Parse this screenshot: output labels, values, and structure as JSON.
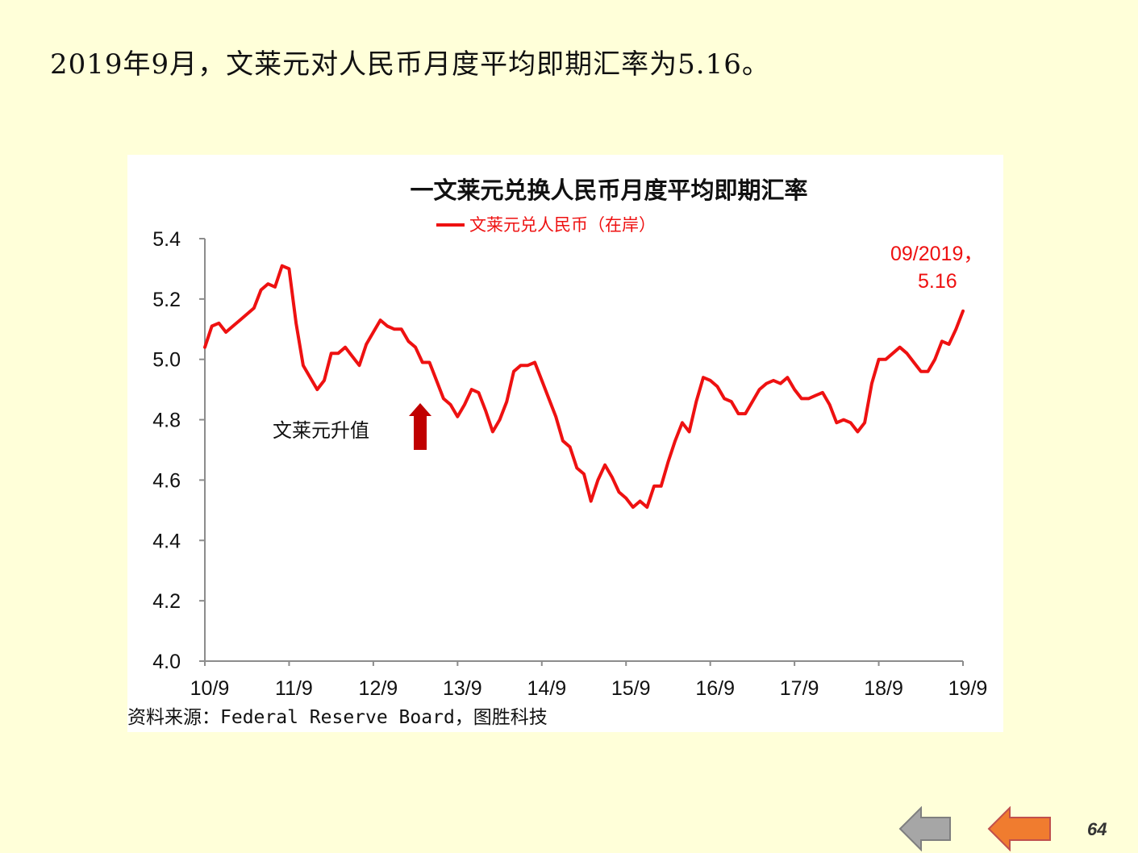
{
  "headline": "2019年9月，文莱元对人民币月度平均即期汇率为5.16。",
  "source": "资料来源：Federal Reserve Board，图胜科技",
  "page_number": "64",
  "nav": {
    "back_icon": "gray-left-arrow-icon",
    "prev_icon": "orange-left-arrow-icon"
  },
  "colors": {
    "background": "#ffffd9",
    "series": "#ee1111",
    "appreciation_arrow": "#c00000",
    "back_arrow": "#a6a6a6",
    "prev_arrow": "#f07c2f"
  },
  "chart_data": {
    "type": "line",
    "title": "一文莱元兑换人民币月度平均即期汇率",
    "xlabel": "",
    "ylabel": "",
    "ylim": [
      4.0,
      5.4
    ],
    "yticks": [
      "5.4",
      "5.2",
      "5.0",
      "4.8",
      "4.6",
      "4.4",
      "4.2",
      "4.0"
    ],
    "xticks": [
      "10/9",
      "11/9",
      "12/9",
      "13/9",
      "14/9",
      "15/9",
      "16/9",
      "17/9",
      "18/9",
      "19/9"
    ],
    "grid": false,
    "legend": "top-center",
    "series": [
      {
        "name": "文莱元兑人民币（在岸）",
        "start": "2010-09",
        "end": "2019-09",
        "values": [
          5.04,
          5.11,
          5.12,
          5.09,
          5.11,
          5.13,
          5.15,
          5.17,
          5.23,
          5.25,
          5.24,
          5.31,
          5.3,
          5.12,
          4.98,
          4.94,
          4.9,
          4.93,
          5.02,
          5.02,
          5.04,
          5.01,
          4.98,
          5.05,
          5.09,
          5.13,
          5.11,
          5.1,
          5.1,
          5.06,
          5.04,
          4.99,
          4.99,
          4.93,
          4.87,
          4.85,
          4.81,
          4.85,
          4.9,
          4.89,
          4.83,
          4.76,
          4.8,
          4.86,
          4.96,
          4.98,
          4.98,
          4.99,
          4.93,
          4.87,
          4.81,
          4.73,
          4.71,
          4.64,
          4.62,
          4.53,
          4.6,
          4.65,
          4.61,
          4.56,
          4.54,
          4.51,
          4.53,
          4.51,
          4.58,
          4.58,
          4.66,
          4.73,
          4.79,
          4.76,
          4.86,
          4.94,
          4.93,
          4.91,
          4.87,
          4.86,
          4.82,
          4.82,
          4.86,
          4.9,
          4.92,
          4.93,
          4.92,
          4.94,
          4.9,
          4.87,
          4.87,
          4.88,
          4.89,
          4.85,
          4.79,
          4.8,
          4.79,
          4.76,
          4.79,
          4.92,
          5.0,
          5.0,
          5.02,
          5.04,
          5.02,
          4.99,
          4.96,
          4.96,
          5.0,
          5.06,
          5.05,
          5.1,
          5.16
        ]
      }
    ],
    "annotations": [
      {
        "text": "09/2019，",
        "text2": "5.16"
      },
      {
        "text": "文莱元升值"
      }
    ]
  }
}
